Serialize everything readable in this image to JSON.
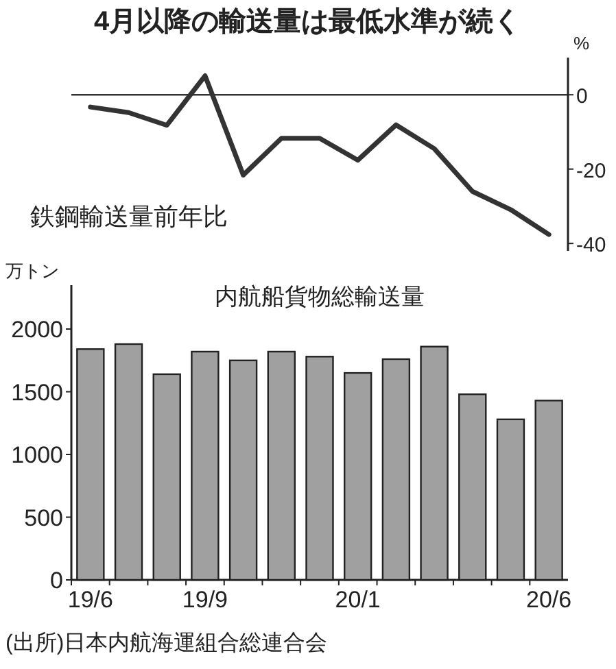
{
  "chart_data": [
    {
      "type": "line",
      "title": "4月以降の輸送量は最低水準が続く",
      "ylabel": "%",
      "annotations": [
        "鉄鋼輸送量前年比"
      ],
      "categories": [
        null,
        null,
        null,
        null,
        null,
        null,
        null,
        null,
        null,
        null,
        null,
        null,
        null
      ],
      "series": [
        {
          "color": "#333333",
          "values": [
            -3.3,
            -4.8,
            -8.2,
            5.1,
            -21.6,
            -11.7,
            -11.7,
            -17.6,
            -8.1,
            -14.5,
            -26,
            -30.9,
            -37.6
          ]
        }
      ],
      "ylim": [
        -42,
        10
      ],
      "yticks": [
        0,
        -20,
        -40
      ],
      "ref_lines": [
        {
          "axis": "y",
          "value": 0,
          "color": "#333333"
        }
      ],
      "tick_labels": "y",
      "marker": "none",
      "line_style": "solid"
    },
    {
      "type": "bar",
      "title": "内航船貨物総輸送量",
      "ylabel": "万トン",
      "annotations": [
        "(出所)日本内航海運組合総連合会"
      ],
      "categories": [
        "19/6",
        null,
        null,
        "19/9",
        null,
        null,
        null,
        "20/1",
        null,
        null,
        null,
        null,
        "20/6"
      ],
      "series": [
        {
          "color": "#a0a0a0",
          "values": [
            1840,
            1880,
            1640,
            1820,
            1750,
            1820,
            1780,
            1650,
            1760,
            1860,
            1480,
            1280,
            1430
          ]
        }
      ],
      "ylim": [
        0,
        2350
      ],
      "yticks": [
        0,
        500,
        1000,
        1500,
        2000
      ]
    }
  ]
}
